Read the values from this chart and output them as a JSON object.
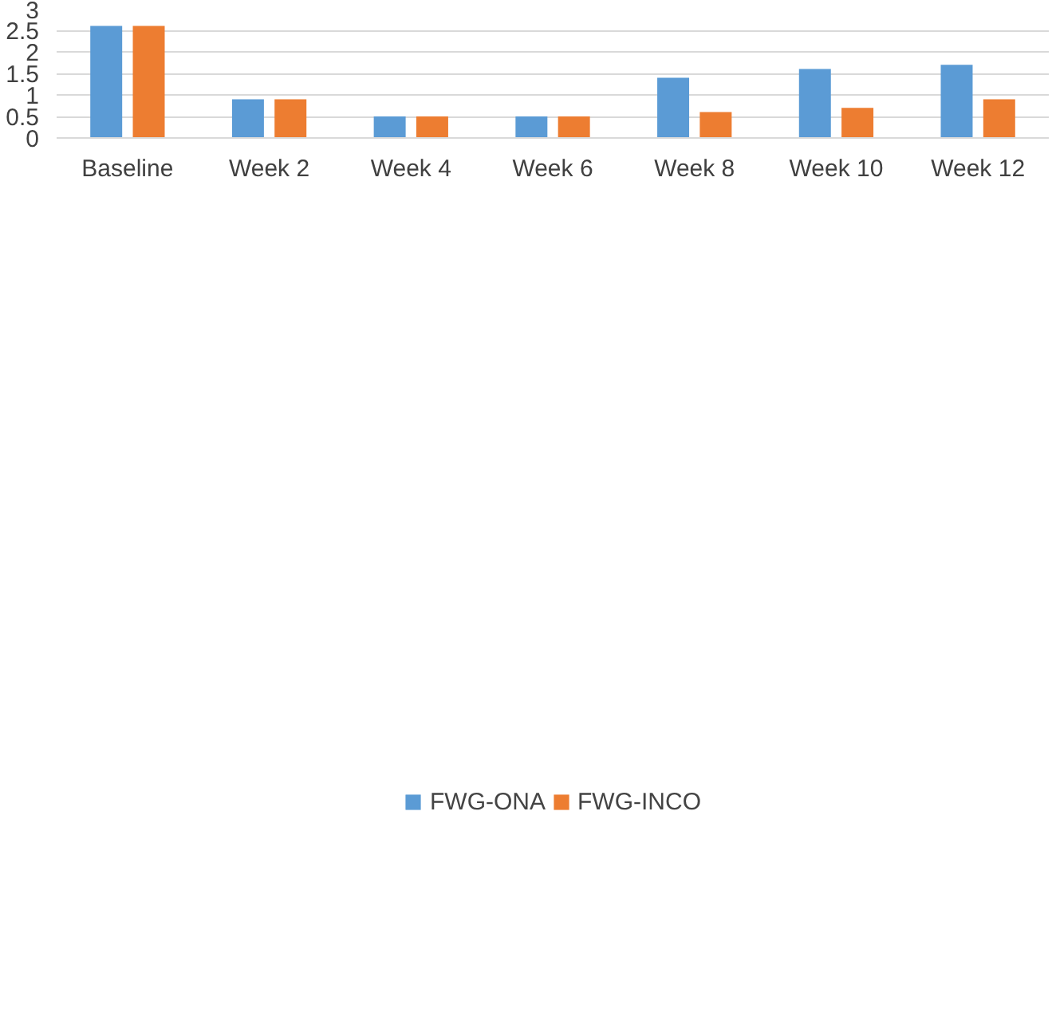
{
  "chart_data": {
    "type": "bar",
    "categories": [
      "Baseline",
      "Week 2",
      "Week 4",
      "Week 6",
      "Week 8",
      "Week 10",
      "Week 12"
    ],
    "series": [
      {
        "name": "FWG-ONA",
        "color": "#5b9bd5",
        "values": [
          2.6,
          0.9,
          0.5,
          0.5,
          1.4,
          1.6,
          1.7
        ]
      },
      {
        "name": "FWG-INCO",
        "color": "#ed7d31",
        "values": [
          2.6,
          0.9,
          0.5,
          0.5,
          0.6,
          0.7,
          0.9
        ]
      }
    ],
    "ylim": [
      0,
      3
    ],
    "yticks": [
      0,
      0.5,
      1,
      1.5,
      2,
      2.5,
      3
    ],
    "grid": "y",
    "legend": "bottom"
  }
}
